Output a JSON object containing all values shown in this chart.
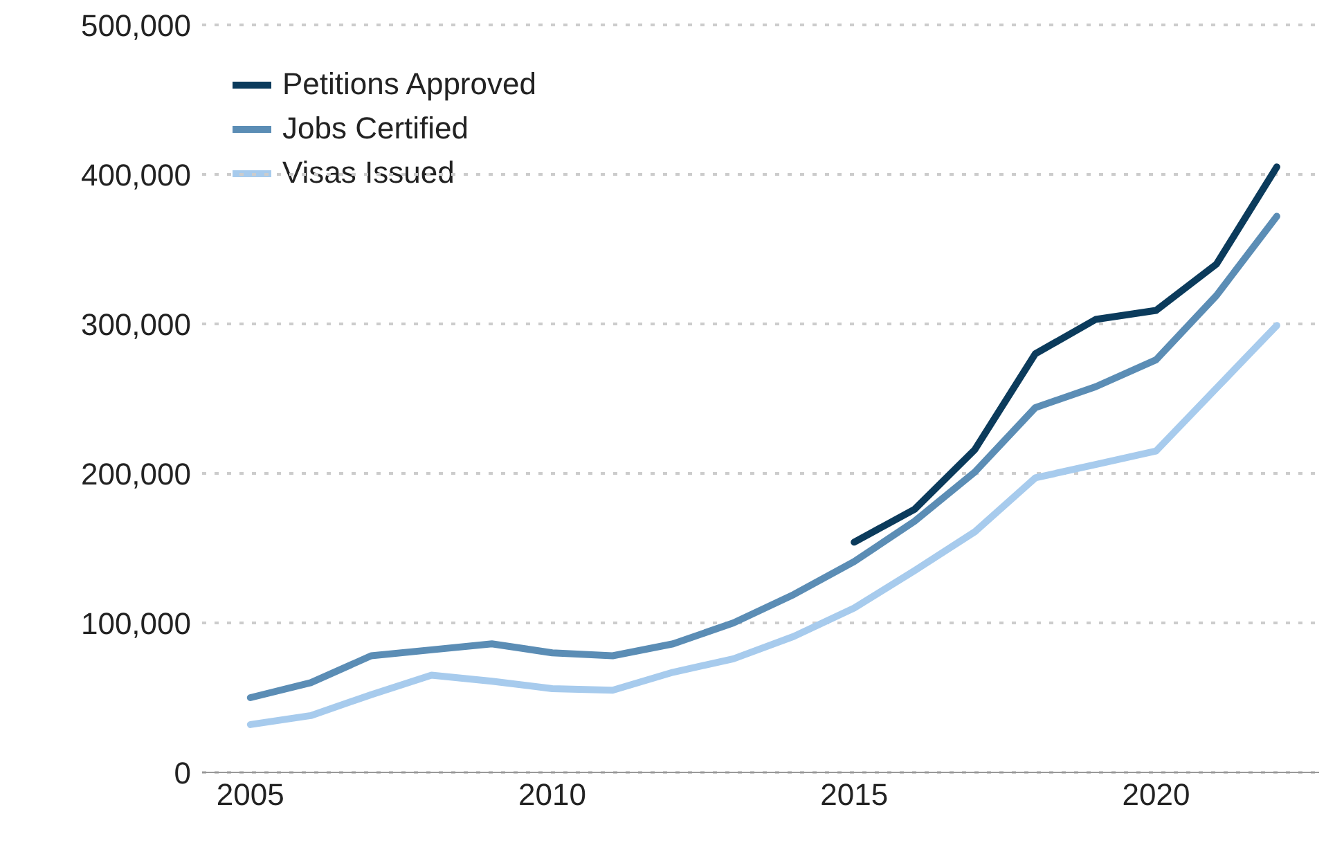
{
  "chart_data": {
    "type": "line",
    "x": [
      2005,
      2006,
      2007,
      2008,
      2009,
      2010,
      2011,
      2012,
      2013,
      2014,
      2015,
      2016,
      2017,
      2018,
      2019,
      2020,
      2021,
      2022
    ],
    "series": [
      {
        "name": "Petitions Approved",
        "color": "#0b3b5c",
        "values": [
          null,
          null,
          null,
          null,
          null,
          null,
          null,
          null,
          null,
          null,
          154000,
          176000,
          216000,
          280000,
          303000,
          309000,
          340000,
          405000
        ]
      },
      {
        "name": "Jobs Certified",
        "color": "#5b8db5",
        "values": [
          50000,
          60000,
          78000,
          82000,
          86000,
          80000,
          78000,
          86000,
          100000,
          119000,
          141000,
          168000,
          201000,
          244000,
          258000,
          276000,
          319000,
          372000
        ]
      },
      {
        "name": "Visas Issued",
        "color": "#a7cbed",
        "values": [
          32000,
          38000,
          52000,
          65000,
          61000,
          56000,
          55000,
          67000,
          76000,
          91000,
          110000,
          135000,
          161000,
          197000,
          206000,
          215000,
          257000,
          299000
        ]
      }
    ],
    "xlim": [
      2004.2,
      2022.7
    ],
    "xticks": [
      2005,
      2010,
      2015,
      2020
    ],
    "ylim": [
      0,
      500000
    ],
    "yticks": [
      {
        "value": 0,
        "label": "0"
      },
      {
        "value": 100000,
        "label": "100,000"
      },
      {
        "value": 200000,
        "label": "200,000"
      },
      {
        "value": 300000,
        "label": "300,000"
      },
      {
        "value": 400000,
        "label": "400,000"
      },
      {
        "value": 500000,
        "label": "500,000"
      }
    ],
    "grid": "y",
    "legend": "top left",
    "marker": "none",
    "line_style": "solid"
  }
}
